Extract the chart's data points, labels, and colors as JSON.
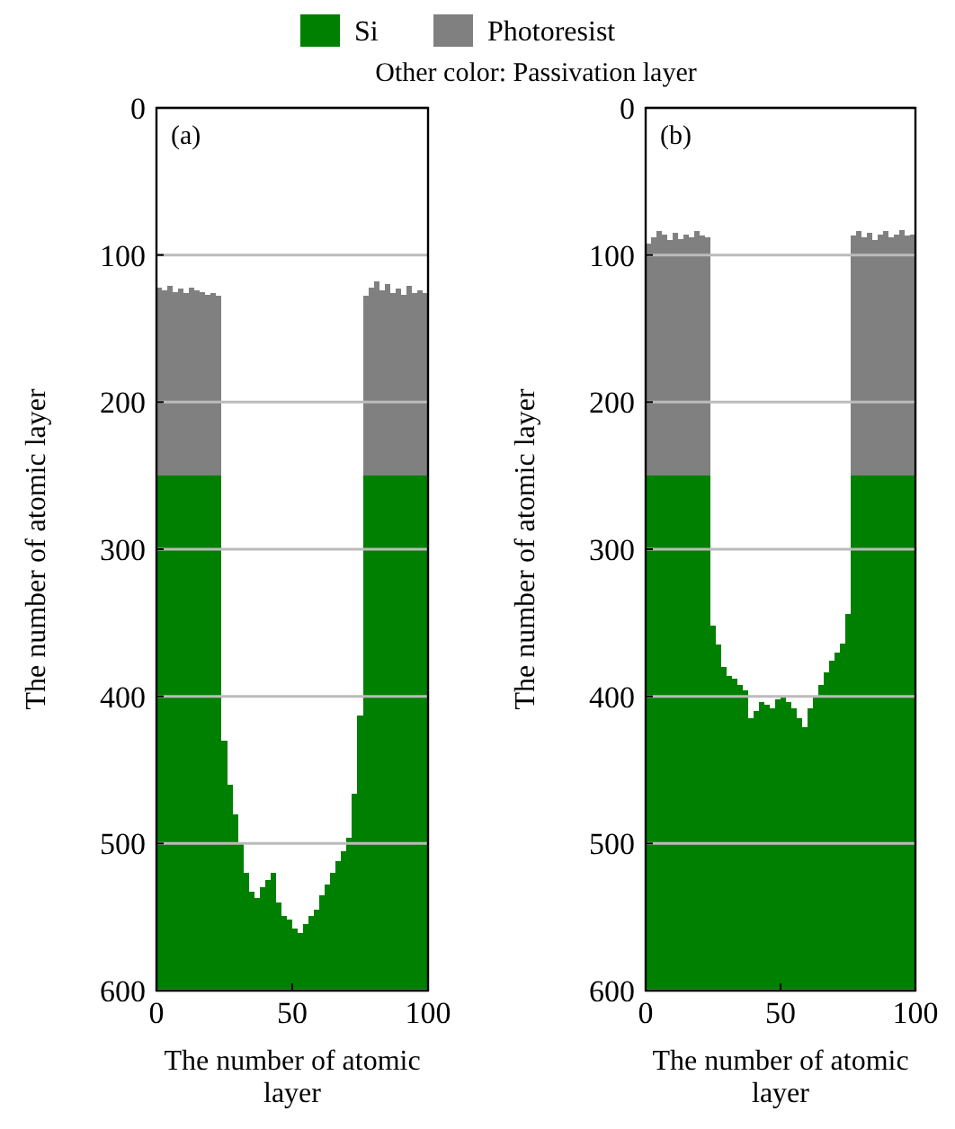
{
  "chart_data": [
    {
      "type": "bar",
      "title": "(a)",
      "xlabel": "The number of atomic layer",
      "ylabel": "The number of atomic layer",
      "annotations": [
        "Other color: Passivation layer"
      ],
      "legend": "top",
      "grid": "y",
      "xlim": [
        0,
        100
      ],
      "xticks": [
        0,
        50,
        100
      ],
      "ylim": [
        600,
        0
      ],
      "yticks": [
        0,
        100,
        200,
        300,
        400,
        500,
        600
      ],
      "x": [
        1,
        3,
        5,
        7,
        9,
        11,
        13,
        15,
        17,
        19,
        21,
        23,
        25,
        27,
        29,
        31,
        33,
        35,
        37,
        39,
        41,
        43,
        45,
        47,
        49,
        51,
        53,
        55,
        57,
        59,
        61,
        63,
        65,
        67,
        69,
        71,
        73,
        75,
        77,
        79,
        81,
        83,
        85,
        87,
        89,
        91,
        93,
        95,
        97,
        99
      ],
      "series": [
        {
          "name": "Photoresist",
          "color": "#808080",
          "base": [
            122,
            124,
            121,
            125,
            123,
            126,
            122,
            124,
            125,
            127,
            126,
            128,
            null,
            null,
            null,
            null,
            null,
            null,
            null,
            null,
            null,
            null,
            null,
            null,
            null,
            null,
            null,
            null,
            null,
            null,
            null,
            null,
            null,
            null,
            null,
            null,
            null,
            null,
            128,
            122,
            118,
            124,
            120,
            126,
            123,
            127,
            121,
            126,
            124,
            126
          ],
          "values": [
            128,
            126,
            129,
            125,
            127,
            124,
            128,
            126,
            125,
            123,
            124,
            122,
            null,
            null,
            null,
            null,
            null,
            null,
            null,
            null,
            null,
            null,
            null,
            null,
            null,
            null,
            null,
            null,
            null,
            null,
            null,
            null,
            null,
            null,
            null,
            null,
            null,
            null,
            122,
            128,
            132,
            126,
            130,
            124,
            127,
            123,
            129,
            124,
            126,
            124
          ]
        },
        {
          "name": "Si",
          "color": "#008000",
          "base": [
            250,
            250,
            250,
            250,
            250,
            250,
            250,
            250,
            250,
            250,
            250,
            250,
            430,
            460,
            480,
            500,
            520,
            533,
            537,
            530,
            525,
            520,
            540,
            549,
            552,
            558,
            561,
            555,
            549,
            545,
            535,
            528,
            520,
            512,
            505,
            496,
            466,
            413,
            250,
            250,
            250,
            250,
            250,
            250,
            250,
            250,
            250,
            250,
            250,
            250
          ],
          "values": [
            350,
            350,
            350,
            350,
            350,
            350,
            350,
            350,
            350,
            350,
            350,
            350,
            170,
            140,
            120,
            100,
            80,
            67,
            63,
            70,
            75,
            80,
            60,
            51,
            48,
            42,
            39,
            45,
            51,
            55,
            65,
            72,
            80,
            88,
            95,
            104,
            134,
            187,
            350,
            350,
            350,
            350,
            350,
            350,
            350,
            350,
            350,
            350,
            350,
            350
          ]
        }
      ]
    },
    {
      "type": "bar",
      "title": "(b)",
      "xlabel": "The number of atomic layer",
      "ylabel": "The number of atomic layer",
      "grid": "y",
      "xlim": [
        0,
        100
      ],
      "xticks": [
        0,
        50,
        100
      ],
      "ylim": [
        600,
        0
      ],
      "yticks": [
        0,
        100,
        200,
        300,
        400,
        500,
        600
      ],
      "x": [
        1,
        3,
        5,
        7,
        9,
        11,
        13,
        15,
        17,
        19,
        21,
        23,
        25,
        27,
        29,
        31,
        33,
        35,
        37,
        39,
        41,
        43,
        45,
        47,
        49,
        51,
        53,
        55,
        57,
        59,
        61,
        63,
        65,
        67,
        69,
        71,
        73,
        75,
        77,
        79,
        81,
        83,
        85,
        87,
        89,
        91,
        93,
        95,
        97,
        99
      ],
      "series": [
        {
          "color": "#808080",
          "base": [
            92,
            88,
            84,
            86,
            90,
            85,
            89,
            86,
            88,
            84,
            87,
            88,
            null,
            null,
            null,
            null,
            null,
            null,
            null,
            null,
            null,
            null,
            null,
            null,
            null,
            null,
            null,
            null,
            null,
            null,
            null,
            null,
            null,
            null,
            null,
            null,
            null,
            null,
            87,
            84,
            88,
            85,
            90,
            86,
            84,
            88,
            86,
            83,
            87,
            86
          ],
          "values": [
            158,
            162,
            166,
            164,
            160,
            165,
            161,
            164,
            162,
            166,
            163,
            162,
            null,
            null,
            null,
            null,
            null,
            null,
            null,
            null,
            null,
            null,
            null,
            null,
            null,
            null,
            null,
            null,
            null,
            null,
            null,
            null,
            null,
            null,
            null,
            null,
            null,
            null,
            163,
            166,
            162,
            165,
            160,
            164,
            166,
            162,
            164,
            167,
            163,
            164
          ]
        },
        {
          "color": "#008000",
          "base": [
            250,
            250,
            250,
            250,
            250,
            250,
            250,
            250,
            250,
            250,
            250,
            250,
            352,
            365,
            380,
            386,
            388,
            392,
            396,
            415,
            410,
            404,
            406,
            408,
            402,
            400,
            404,
            408,
            415,
            421,
            408,
            400,
            392,
            384,
            376,
            370,
            364,
            344,
            250,
            250,
            250,
            250,
            250,
            250,
            250,
            250,
            250,
            250,
            250,
            250
          ],
          "values": [
            350,
            350,
            350,
            350,
            350,
            350,
            350,
            350,
            350,
            350,
            350,
            350,
            248,
            235,
            220,
            214,
            212,
            208,
            204,
            185,
            190,
            196,
            194,
            192,
            198,
            200,
            196,
            192,
            185,
            179,
            192,
            200,
            208,
            216,
            224,
            230,
            236,
            256,
            350,
            350,
            350,
            350,
            350,
            350,
            350,
            350,
            350,
            350,
            350,
            350
          ]
        }
      ]
    }
  ]
}
